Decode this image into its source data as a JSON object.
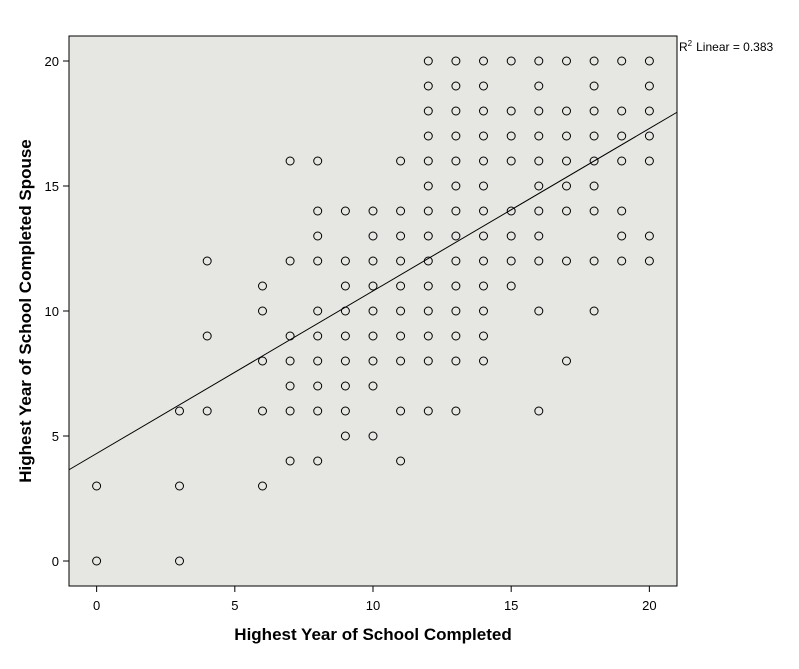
{
  "chart_data": {
    "type": "scatter",
    "xlabel": "Highest Year of School Completed",
    "ylabel": "Highest Year of School Completed Spouse",
    "xlim": [
      -1,
      21
    ],
    "ylim": [
      -1,
      21
    ],
    "x_ticks": [
      0,
      5,
      10,
      15,
      20
    ],
    "y_ticks": [
      0,
      5,
      10,
      15,
      20
    ],
    "grid": false,
    "plot_background": "#e6e6e3",
    "marker": "hollow-circle",
    "fit_line": {
      "type": "linear",
      "intercept": 4.3,
      "slope": 0.65
    },
    "r2_label": {
      "letter": "R",
      "superscript": "2",
      "text": "Linear = 0.383"
    },
    "points": [
      [
        0,
        0
      ],
      [
        0,
        3
      ],
      [
        3,
        0
      ],
      [
        3,
        3
      ],
      [
        3,
        6
      ],
      [
        4,
        6
      ],
      [
        4,
        9
      ],
      [
        4,
        12
      ],
      [
        6,
        3
      ],
      [
        6,
        6
      ],
      [
        6,
        8
      ],
      [
        6,
        10
      ],
      [
        6,
        11
      ],
      [
        7,
        4
      ],
      [
        7,
        6
      ],
      [
        7,
        7
      ],
      [
        7,
        8
      ],
      [
        7,
        9
      ],
      [
        7,
        12
      ],
      [
        7,
        16
      ],
      [
        8,
        4
      ],
      [
        8,
        6
      ],
      [
        8,
        7
      ],
      [
        8,
        8
      ],
      [
        8,
        9
      ],
      [
        8,
        10
      ],
      [
        8,
        12
      ],
      [
        8,
        13
      ],
      [
        8,
        14
      ],
      [
        8,
        16
      ],
      [
        9,
        5
      ],
      [
        9,
        6
      ],
      [
        9,
        7
      ],
      [
        9,
        8
      ],
      [
        9,
        9
      ],
      [
        9,
        10
      ],
      [
        9,
        11
      ],
      [
        9,
        12
      ],
      [
        9,
        14
      ],
      [
        10,
        5
      ],
      [
        10,
        7
      ],
      [
        10,
        8
      ],
      [
        10,
        9
      ],
      [
        10,
        10
      ],
      [
        10,
        11
      ],
      [
        10,
        12
      ],
      [
        10,
        13
      ],
      [
        10,
        14
      ],
      [
        11,
        4
      ],
      [
        11,
        6
      ],
      [
        11,
        8
      ],
      [
        11,
        9
      ],
      [
        11,
        10
      ],
      [
        11,
        11
      ],
      [
        11,
        12
      ],
      [
        11,
        13
      ],
      [
        11,
        14
      ],
      [
        11,
        16
      ],
      [
        12,
        6
      ],
      [
        12,
        8
      ],
      [
        12,
        9
      ],
      [
        12,
        10
      ],
      [
        12,
        11
      ],
      [
        12,
        12
      ],
      [
        12,
        13
      ],
      [
        12,
        14
      ],
      [
        12,
        15
      ],
      [
        12,
        16
      ],
      [
        12,
        17
      ],
      [
        12,
        18
      ],
      [
        12,
        19
      ],
      [
        12,
        20
      ],
      [
        13,
        6
      ],
      [
        13,
        8
      ],
      [
        13,
        9
      ],
      [
        13,
        10
      ],
      [
        13,
        11
      ],
      [
        13,
        12
      ],
      [
        13,
        13
      ],
      [
        13,
        14
      ],
      [
        13,
        15
      ],
      [
        13,
        16
      ],
      [
        13,
        17
      ],
      [
        13,
        18
      ],
      [
        13,
        19
      ],
      [
        13,
        20
      ],
      [
        14,
        8
      ],
      [
        14,
        9
      ],
      [
        14,
        10
      ],
      [
        14,
        11
      ],
      [
        14,
        12
      ],
      [
        14,
        13
      ],
      [
        14,
        14
      ],
      [
        14,
        15
      ],
      [
        14,
        16
      ],
      [
        14,
        17
      ],
      [
        14,
        18
      ],
      [
        14,
        19
      ],
      [
        14,
        20
      ],
      [
        15,
        11
      ],
      [
        15,
        12
      ],
      [
        15,
        13
      ],
      [
        15,
        14
      ],
      [
        15,
        16
      ],
      [
        15,
        17
      ],
      [
        15,
        18
      ],
      [
        15,
        20
      ],
      [
        16,
        6
      ],
      [
        16,
        10
      ],
      [
        16,
        12
      ],
      [
        16,
        13
      ],
      [
        16,
        14
      ],
      [
        16,
        15
      ],
      [
        16,
        16
      ],
      [
        16,
        17
      ],
      [
        16,
        18
      ],
      [
        16,
        19
      ],
      [
        16,
        20
      ],
      [
        17,
        8
      ],
      [
        17,
        12
      ],
      [
        17,
        14
      ],
      [
        17,
        15
      ],
      [
        17,
        16
      ],
      [
        17,
        17
      ],
      [
        17,
        18
      ],
      [
        17,
        20
      ],
      [
        18,
        10
      ],
      [
        18,
        12
      ],
      [
        18,
        14
      ],
      [
        18,
        15
      ],
      [
        18,
        16
      ],
      [
        18,
        17
      ],
      [
        18,
        18
      ],
      [
        18,
        19
      ],
      [
        18,
        20
      ],
      [
        19,
        12
      ],
      [
        19,
        13
      ],
      [
        19,
        14
      ],
      [
        19,
        16
      ],
      [
        19,
        17
      ],
      [
        19,
        18
      ],
      [
        19,
        20
      ],
      [
        20,
        12
      ],
      [
        20,
        13
      ],
      [
        20,
        16
      ],
      [
        20,
        17
      ],
      [
        20,
        18
      ],
      [
        20,
        19
      ],
      [
        20,
        20
      ]
    ]
  }
}
